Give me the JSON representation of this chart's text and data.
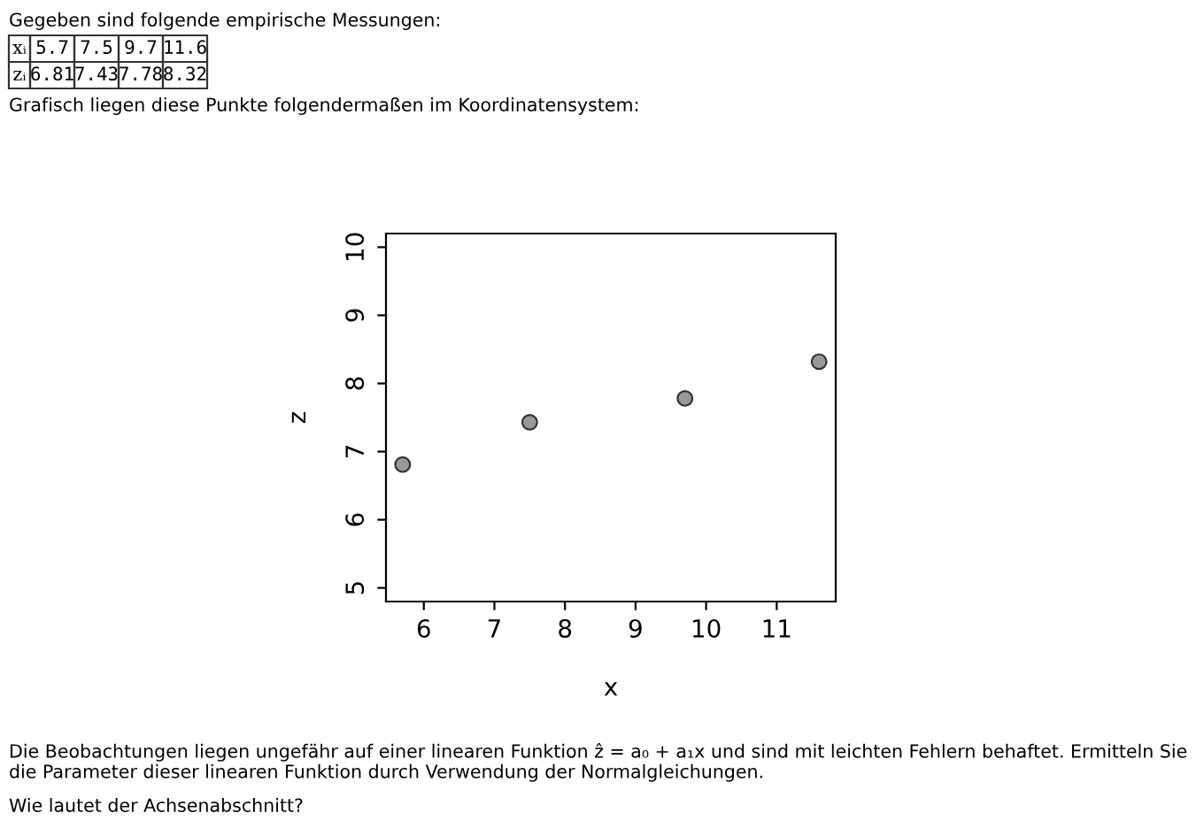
{
  "chart_data": {
    "type": "scatter",
    "x": [
      5.7,
      7.5,
      9.7,
      11.6
    ],
    "values": [
      6.81,
      7.43,
      7.78,
      8.32
    ],
    "color": "#999999",
    "marker": "circle",
    "xlabel": "x",
    "ylabel": "z",
    "xlim": [
      5.464,
      11.836
    ],
    "ylim": [
      4.8,
      10.2
    ],
    "xticks": [
      6,
      7,
      8,
      9,
      10,
      11
    ],
    "yticks": [
      5,
      6,
      7,
      8,
      9,
      10
    ],
    "grid": false,
    "annotations": [
      "Gegeben sind folgende empirische Messungen:",
      "xᵢ",
      "5.7",
      "7.5",
      "9.7",
      "11.6",
      "zᵢ",
      "6.81",
      "7.43",
      "7.78",
      "8.32",
      "Grafisch liegen diese Punkte folgendermaßen im Koordinatensystem:",
      "Die Beobachtungen liegen ungefähr auf einer linearen Funktion ẑ = a₀ + a₁x und sind mit leichten Fehlern behaftet. Ermitteln Sie die Parameter dieser linearen Funktion durch Verwendung der Normalgleichungen.",
      "Wie lautet der Achsenabschnitt?"
    ]
  }
}
